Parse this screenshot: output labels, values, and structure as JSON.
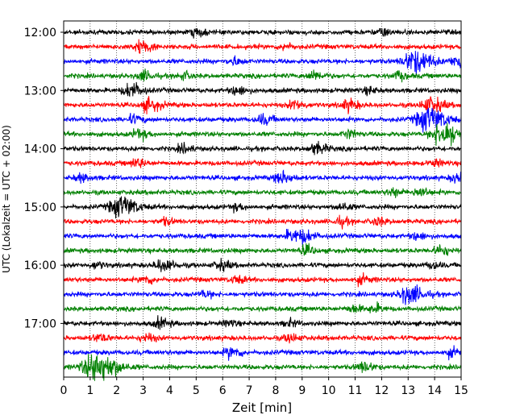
{
  "chart_data": {
    "type": "line",
    "xlabel": "Zeit  [min]",
    "ylabel": "UTC (Lokalzeit = UTC + 02:00)",
    "xlim": [
      0,
      15
    ],
    "x_ticks": [
      "0",
      "1",
      "2",
      "3",
      "4",
      "5",
      "6",
      "7",
      "8",
      "9",
      "10",
      "11",
      "12",
      "13",
      "14",
      "15"
    ],
    "y_ticks": [
      {
        "label": "12:00",
        "minutes_after_start": 0
      },
      {
        "label": "13:00",
        "minutes_after_start": 60
      },
      {
        "label": "14:00",
        "minutes_after_start": 120
      },
      {
        "label": "15:00",
        "minutes_after_start": 180
      },
      {
        "label": "16:00",
        "minutes_after_start": 240
      },
      {
        "label": "17:00",
        "minutes_after_start": 300
      }
    ],
    "trace_interval_minutes": 15,
    "trace_color_cycle": [
      "#000000",
      "#ff0000",
      "#0000ff",
      "#008000"
    ],
    "vertical_grid": "dotted",
    "traces": [
      {
        "start": "12:00",
        "color": "#000000",
        "events": [
          {
            "x": 5.0,
            "amp": 1.0
          },
          {
            "x": 12.0,
            "amp": 1.0
          }
        ]
      },
      {
        "start": "12:15",
        "color": "#ff0000",
        "events": [
          {
            "x": 2.9,
            "amp": 1.6
          },
          {
            "x": 8.3,
            "amp": 0.8
          }
        ]
      },
      {
        "start": "12:30",
        "color": "#0000ff",
        "events": [
          {
            "x": 6.4,
            "amp": 1.0
          },
          {
            "x": 13.2,
            "amp": 3.0
          },
          {
            "x": 14.9,
            "amp": 1.8
          }
        ]
      },
      {
        "start": "12:45",
        "color": "#008000",
        "events": [
          {
            "x": 3.0,
            "amp": 1.2
          },
          {
            "x": 4.5,
            "amp": 0.9
          },
          {
            "x": 9.4,
            "amp": 1.2
          },
          {
            "x": 12.6,
            "amp": 1.0
          }
        ]
      },
      {
        "start": "13:00",
        "color": "#000000",
        "events": [
          {
            "x": 2.5,
            "amp": 1.8
          },
          {
            "x": 6.5,
            "amp": 1.2
          },
          {
            "x": 11.5,
            "amp": 0.8
          }
        ]
      },
      {
        "start": "13:15",
        "color": "#ff0000",
        "events": [
          {
            "x": 3.2,
            "amp": 1.6
          },
          {
            "x": 8.7,
            "amp": 1.2
          },
          {
            "x": 10.7,
            "amp": 1.4
          },
          {
            "x": 13.8,
            "amp": 2.0
          }
        ]
      },
      {
        "start": "13:30",
        "color": "#0000ff",
        "events": [
          {
            "x": 2.6,
            "amp": 1.0
          },
          {
            "x": 7.5,
            "amp": 1.2
          },
          {
            "x": 13.7,
            "amp": 3.2
          }
        ]
      },
      {
        "start": "13:45",
        "color": "#008000",
        "events": [
          {
            "x": 2.8,
            "amp": 1.2
          },
          {
            "x": 10.7,
            "amp": 1.0
          },
          {
            "x": 14.3,
            "amp": 3.2
          }
        ]
      },
      {
        "start": "14:00",
        "color": "#000000",
        "events": [
          {
            "x": 4.5,
            "amp": 1.0
          },
          {
            "x": 9.5,
            "amp": 1.4
          }
        ]
      },
      {
        "start": "14:15",
        "color": "#ff0000",
        "events": [
          {
            "x": 2.7,
            "amp": 1.2
          },
          {
            "x": 14.0,
            "amp": 0.8
          }
        ]
      },
      {
        "start": "14:30",
        "color": "#0000ff",
        "events": [
          {
            "x": 0.6,
            "amp": 1.0
          },
          {
            "x": 8.2,
            "amp": 1.5
          },
          {
            "x": 14.8,
            "amp": 1.2
          }
        ]
      },
      {
        "start": "14:45",
        "color": "#008000",
        "events": [
          {
            "x": 12.4,
            "amp": 1.0
          },
          {
            "x": 13.4,
            "amp": 1.2
          }
        ]
      },
      {
        "start": "15:00",
        "color": "#000000",
        "events": [
          {
            "x": 2.1,
            "amp": 2.8
          },
          {
            "x": 6.5,
            "amp": 0.8
          },
          {
            "x": 10.5,
            "amp": 1.0
          }
        ]
      },
      {
        "start": "15:15",
        "color": "#ff0000",
        "events": [
          {
            "x": 3.8,
            "amp": 0.8
          },
          {
            "x": 10.4,
            "amp": 1.0
          },
          {
            "x": 11.8,
            "amp": 1.0
          }
        ]
      },
      {
        "start": "15:30",
        "color": "#0000ff",
        "events": [
          {
            "x": 8.6,
            "amp": 1.5
          },
          {
            "x": 9.1,
            "amp": 1.2
          },
          {
            "x": 13.3,
            "amp": 1.0
          }
        ]
      },
      {
        "start": "15:45",
        "color": "#008000",
        "events": [
          {
            "x": 9.1,
            "amp": 1.1
          },
          {
            "x": 14.2,
            "amp": 1.2
          }
        ]
      },
      {
        "start": "16:00",
        "color": "#000000",
        "events": [
          {
            "x": 1.2,
            "amp": 0.8
          },
          {
            "x": 3.7,
            "amp": 1.6
          },
          {
            "x": 5.9,
            "amp": 1.2
          },
          {
            "x": 13.9,
            "amp": 0.8
          }
        ]
      },
      {
        "start": "16:15",
        "color": "#ff0000",
        "events": [
          {
            "x": 3.1,
            "amp": 1.0
          },
          {
            "x": 6.5,
            "amp": 0.9
          },
          {
            "x": 11.2,
            "amp": 1.0
          }
        ]
      },
      {
        "start": "16:30",
        "color": "#0000ff",
        "events": [
          {
            "x": 5.3,
            "amp": 0.8
          },
          {
            "x": 13.0,
            "amp": 2.4
          }
        ]
      },
      {
        "start": "16:45",
        "color": "#008000",
        "events": [
          {
            "x": 10.9,
            "amp": 1.0
          },
          {
            "x": 11.7,
            "amp": 1.0
          }
        ]
      },
      {
        "start": "17:00",
        "color": "#000000",
        "events": [
          {
            "x": 3.6,
            "amp": 1.2
          },
          {
            "x": 6.2,
            "amp": 0.8
          },
          {
            "x": 8.5,
            "amp": 0.8
          }
        ]
      },
      {
        "start": "17:15",
        "color": "#ff0000",
        "events": [
          {
            "x": 1.3,
            "amp": 1.0
          },
          {
            "x": 3.1,
            "amp": 1.0
          },
          {
            "x": 8.5,
            "amp": 1.0
          }
        ]
      },
      {
        "start": "17:30",
        "color": "#0000ff",
        "events": [
          {
            "x": 6.3,
            "amp": 1.4
          },
          {
            "x": 14.6,
            "amp": 1.0
          }
        ]
      },
      {
        "start": "17:45",
        "color": "#008000",
        "events": [
          {
            "x": 1.2,
            "amp": 4.0
          },
          {
            "x": 11.3,
            "amp": 1.2
          }
        ]
      }
    ]
  }
}
